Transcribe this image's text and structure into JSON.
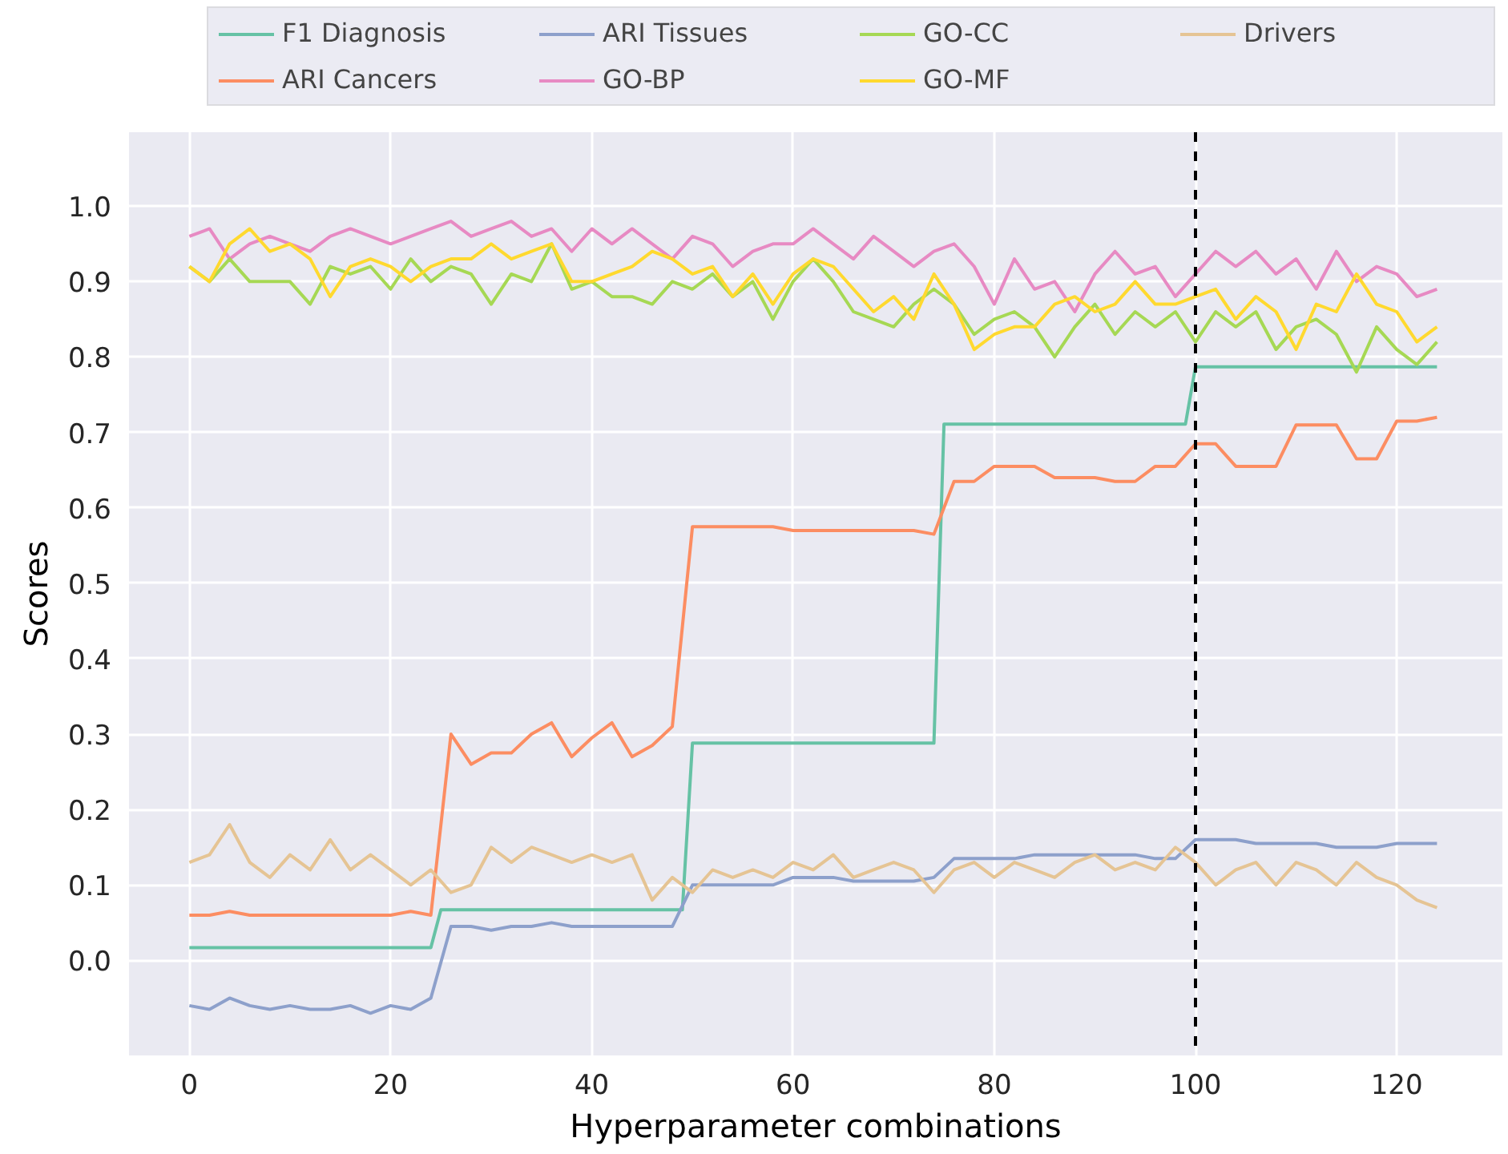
{
  "chart_data": {
    "type": "line",
    "xlabel": "Hyperparameter combinations",
    "ylabel": "Scores",
    "xlim": [
      -6,
      130.5
    ],
    "ylim": [
      -0.126,
      1.098
    ],
    "xticks": [
      0,
      20,
      40,
      60,
      80,
      100,
      120
    ],
    "yticks": [
      {
        "value": 0,
        "label": "0.0"
      },
      {
        "value": 0.1,
        "label": "0.1"
      },
      {
        "value": 0.2,
        "label": "0.2"
      },
      {
        "value": 0.3,
        "label": "0.3"
      },
      {
        "value": 0.4,
        "label": "0.4"
      },
      {
        "value": 0.5,
        "label": "0.5"
      },
      {
        "value": 0.6,
        "label": "0.6"
      },
      {
        "value": 0.7,
        "label": "0.7"
      },
      {
        "value": 0.8,
        "label": "0.8"
      },
      {
        "value": 0.9,
        "label": "0.9"
      },
      {
        "value": 1.0,
        "label": "1.0"
      }
    ],
    "grid": true,
    "legend": "top",
    "marker": "none",
    "line_style": "solid",
    "ref_lines": [
      {
        "axis": "x",
        "value": 100,
        "label": null,
        "color": "#000000",
        "line_style": "dashed"
      }
    ],
    "x": [
      0,
      2,
      4,
      6,
      8,
      10,
      12,
      14,
      16,
      18,
      20,
      22,
      24,
      26,
      28,
      30,
      32,
      34,
      36,
      38,
      40,
      42,
      44,
      46,
      48,
      50,
      52,
      54,
      56,
      58,
      60,
      62,
      64,
      66,
      68,
      70,
      72,
      74,
      76,
      78,
      80,
      82,
      84,
      86,
      88,
      90,
      92,
      94,
      96,
      98,
      100,
      102,
      104,
      106,
      108,
      110,
      112,
      114,
      116,
      118,
      120,
      122,
      124
    ],
    "series": [
      {
        "name": "F1 Diagnosis",
        "color": "#66c2a5",
        "x": [
          0,
          24,
          25,
          49,
          50,
          74,
          75,
          99,
          100,
          124
        ],
        "values": [
          0.017,
          0.017,
          0.067,
          0.067,
          0.288,
          0.288,
          0.711,
          0.711,
          0.787,
          0.787
        ]
      },
      {
        "name": "ARI Cancers",
        "color": "#fc8d62",
        "values": [
          0.06,
          0.06,
          0.065,
          0.06,
          0.06,
          0.06,
          0.06,
          0.06,
          0.06,
          0.06,
          0.06,
          0.065,
          0.06,
          0.3,
          0.26,
          0.275,
          0.275,
          0.3,
          0.315,
          0.27,
          0.295,
          0.315,
          0.27,
          0.285,
          0.31,
          0.575,
          0.575,
          0.575,
          0.575,
          0.575,
          0.57,
          0.57,
          0.57,
          0.57,
          0.57,
          0.57,
          0.57,
          0.565,
          0.635,
          0.635,
          0.655,
          0.655,
          0.655,
          0.64,
          0.64,
          0.64,
          0.635,
          0.635,
          0.655,
          0.655,
          0.685,
          0.685,
          0.655,
          0.655,
          0.655,
          0.71,
          0.71,
          0.71,
          0.665,
          0.665,
          0.715,
          0.715,
          0.72
        ]
      },
      {
        "name": "ARI Tissues",
        "color": "#8da0cb",
        "values": [
          -0.06,
          -0.065,
          -0.05,
          -0.06,
          -0.065,
          -0.06,
          -0.065,
          -0.065,
          -0.06,
          -0.07,
          -0.06,
          -0.065,
          -0.05,
          0.045,
          0.045,
          0.04,
          0.045,
          0.045,
          0.05,
          0.045,
          0.045,
          0.045,
          0.045,
          0.045,
          0.045,
          0.1,
          0.1,
          0.1,
          0.1,
          0.1,
          0.11,
          0.11,
          0.11,
          0.105,
          0.105,
          0.105,
          0.105,
          0.11,
          0.135,
          0.135,
          0.135,
          0.135,
          0.14,
          0.14,
          0.14,
          0.14,
          0.14,
          0.14,
          0.135,
          0.135,
          0.16,
          0.16,
          0.16,
          0.155,
          0.155,
          0.155,
          0.155,
          0.15,
          0.15,
          0.15,
          0.155,
          0.155,
          0.155
        ]
      },
      {
        "name": "GO-BP",
        "color": "#e78ac3",
        "values": [
          0.96,
          0.97,
          0.93,
          0.95,
          0.96,
          0.95,
          0.94,
          0.96,
          0.97,
          0.96,
          0.95,
          0.96,
          0.97,
          0.98,
          0.96,
          0.97,
          0.98,
          0.96,
          0.97,
          0.94,
          0.97,
          0.95,
          0.97,
          0.95,
          0.93,
          0.96,
          0.95,
          0.92,
          0.94,
          0.95,
          0.95,
          0.97,
          0.95,
          0.93,
          0.96,
          0.94,
          0.92,
          0.94,
          0.95,
          0.92,
          0.87,
          0.93,
          0.89,
          0.9,
          0.86,
          0.91,
          0.94,
          0.91,
          0.92,
          0.88,
          0.91,
          0.94,
          0.92,
          0.94,
          0.91,
          0.93,
          0.89,
          0.94,
          0.9,
          0.92,
          0.91,
          0.88,
          0.89
        ]
      },
      {
        "name": "GO-CC",
        "color": "#a6d854",
        "values": [
          0.92,
          0.9,
          0.93,
          0.9,
          0.9,
          0.9,
          0.87,
          0.92,
          0.91,
          0.92,
          0.89,
          0.93,
          0.9,
          0.92,
          0.91,
          0.87,
          0.91,
          0.9,
          0.95,
          0.89,
          0.9,
          0.88,
          0.88,
          0.87,
          0.9,
          0.89,
          0.91,
          0.88,
          0.9,
          0.85,
          0.9,
          0.93,
          0.9,
          0.86,
          0.85,
          0.84,
          0.87,
          0.89,
          0.87,
          0.83,
          0.85,
          0.86,
          0.84,
          0.8,
          0.84,
          0.87,
          0.83,
          0.86,
          0.84,
          0.86,
          0.82,
          0.86,
          0.84,
          0.86,
          0.81,
          0.84,
          0.85,
          0.83,
          0.78,
          0.84,
          0.81,
          0.79,
          0.82
        ]
      },
      {
        "name": "GO-MF",
        "color": "#ffd92f",
        "values": [
          0.92,
          0.9,
          0.95,
          0.97,
          0.94,
          0.95,
          0.93,
          0.88,
          0.92,
          0.93,
          0.92,
          0.9,
          0.92,
          0.93,
          0.93,
          0.95,
          0.93,
          0.94,
          0.95,
          0.9,
          0.9,
          0.91,
          0.92,
          0.94,
          0.93,
          0.91,
          0.92,
          0.88,
          0.91,
          0.87,
          0.91,
          0.93,
          0.92,
          0.89,
          0.86,
          0.88,
          0.85,
          0.91,
          0.87,
          0.81,
          0.83,
          0.84,
          0.84,
          0.87,
          0.88,
          0.86,
          0.87,
          0.9,
          0.87,
          0.87,
          0.88,
          0.89,
          0.85,
          0.88,
          0.86,
          0.81,
          0.87,
          0.86,
          0.91,
          0.87,
          0.86,
          0.82,
          0.84
        ]
      },
      {
        "name": "Drivers",
        "color": "#e5c494",
        "values": [
          0.13,
          0.14,
          0.18,
          0.13,
          0.11,
          0.14,
          0.12,
          0.16,
          0.12,
          0.14,
          0.12,
          0.1,
          0.12,
          0.09,
          0.1,
          0.15,
          0.13,
          0.15,
          0.14,
          0.13,
          0.14,
          0.13,
          0.14,
          0.08,
          0.11,
          0.09,
          0.12,
          0.11,
          0.12,
          0.11,
          0.13,
          0.12,
          0.14,
          0.11,
          0.12,
          0.13,
          0.12,
          0.09,
          0.12,
          0.13,
          0.11,
          0.13,
          0.12,
          0.11,
          0.13,
          0.14,
          0.12,
          0.13,
          0.12,
          0.15,
          0.13,
          0.1,
          0.12,
          0.13,
          0.1,
          0.13,
          0.12,
          0.1,
          0.13,
          0.11,
          0.1,
          0.08,
          0.07
        ]
      }
    ]
  }
}
